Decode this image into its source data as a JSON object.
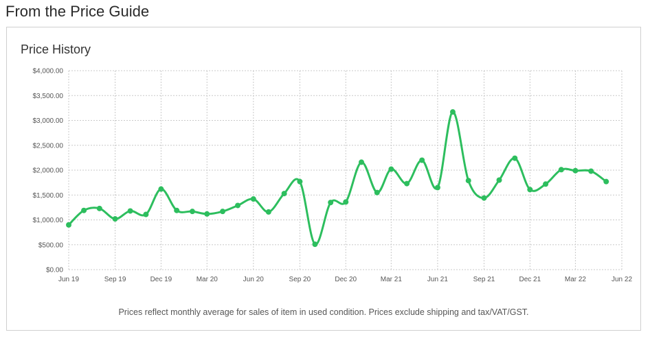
{
  "header": {
    "title": "From the Price Guide"
  },
  "card": {
    "title": "Price History",
    "footnote": "Prices reflect monthly average for sales of item in used condition. Prices exclude shipping and tax/VAT/GST."
  },
  "colors": {
    "line": "#2dbe5e",
    "grid": "#c9c9c9",
    "text": "#555555"
  },
  "chart_data": {
    "type": "line",
    "title": "Price History",
    "xlabel": "",
    "ylabel": "",
    "grid": true,
    "legend": "none",
    "ylim": [
      0,
      4000
    ],
    "y_ticks": [
      0,
      500,
      1000,
      1500,
      2000,
      2500,
      3000,
      3500,
      4000
    ],
    "y_tick_labels": [
      "$0.00",
      "$500.00",
      "$1,000.00",
      "$1,500.00",
      "$2,000.00",
      "$2,500.00",
      "$3,000.00",
      "$3,500.00",
      "$4,000.00"
    ],
    "x_range": [
      "2019-06-01",
      "2022-06-01"
    ],
    "x_ticks": [
      {
        "label": "Jun 19",
        "date": "2019-06-01"
      },
      {
        "label": "Sep 19",
        "date": "2019-09-01"
      },
      {
        "label": "Dec 19",
        "date": "2019-12-01"
      },
      {
        "label": "Mar 20",
        "date": "2020-03-01"
      },
      {
        "label": "Jun 20",
        "date": "2020-06-01"
      },
      {
        "label": "Sep 20",
        "date": "2020-09-01"
      },
      {
        "label": "Dec 20",
        "date": "2020-12-01"
      },
      {
        "label": "Mar 21",
        "date": "2021-03-01"
      },
      {
        "label": "Jun 21",
        "date": "2021-06-01"
      },
      {
        "label": "Sep 21",
        "date": "2021-09-01"
      },
      {
        "label": "Dec 21",
        "date": "2021-12-01"
      },
      {
        "label": "Mar 22",
        "date": "2022-03-01"
      },
      {
        "label": "Jun 22",
        "date": "2022-06-01"
      }
    ],
    "series": [
      {
        "points": [
          {
            "x": "2019-06-01",
            "y": 900
          },
          {
            "x": "2019-07-01",
            "y": 1190
          },
          {
            "x": "2019-08-01",
            "y": 1230
          },
          {
            "x": "2019-09-01",
            "y": 1020
          },
          {
            "x": "2019-10-01",
            "y": 1180
          },
          {
            "x": "2019-11-01",
            "y": 1110
          },
          {
            "x": "2019-12-01",
            "y": 1620
          },
          {
            "x": "2020-01-01",
            "y": 1190
          },
          {
            "x": "2020-02-01",
            "y": 1170
          },
          {
            "x": "2020-03-01",
            "y": 1120
          },
          {
            "x": "2020-04-01",
            "y": 1170
          },
          {
            "x": "2020-05-01",
            "y": 1290
          },
          {
            "x": "2020-06-01",
            "y": 1420
          },
          {
            "x": "2020-07-01",
            "y": 1160
          },
          {
            "x": "2020-08-01",
            "y": 1530
          },
          {
            "x": "2020-09-01",
            "y": 1770
          },
          {
            "x": "2020-10-01",
            "y": 510
          },
          {
            "x": "2020-11-01",
            "y": 1350
          },
          {
            "x": "2020-12-01",
            "y": 1360
          },
          {
            "x": "2021-01-01",
            "y": 2160
          },
          {
            "x": "2021-02-01",
            "y": 1550
          },
          {
            "x": "2021-03-01",
            "y": 2020
          },
          {
            "x": "2021-04-01",
            "y": 1730
          },
          {
            "x": "2021-05-01",
            "y": 2200
          },
          {
            "x": "2021-06-01",
            "y": 1650
          },
          {
            "x": "2021-07-01",
            "y": 3170
          },
          {
            "x": "2021-08-01",
            "y": 1790
          },
          {
            "x": "2021-09-01",
            "y": 1440
          },
          {
            "x": "2021-10-01",
            "y": 1800
          },
          {
            "x": "2021-11-01",
            "y": 2240
          },
          {
            "x": "2021-12-01",
            "y": 1610
          },
          {
            "x": "2022-01-01",
            "y": 1720
          },
          {
            "x": "2022-02-01",
            "y": 2010
          },
          {
            "x": "2022-03-01",
            "y": 1990
          },
          {
            "x": "2022-04-01",
            "y": 1980
          },
          {
            "x": "2022-05-01",
            "y": 1770
          }
        ]
      }
    ]
  }
}
